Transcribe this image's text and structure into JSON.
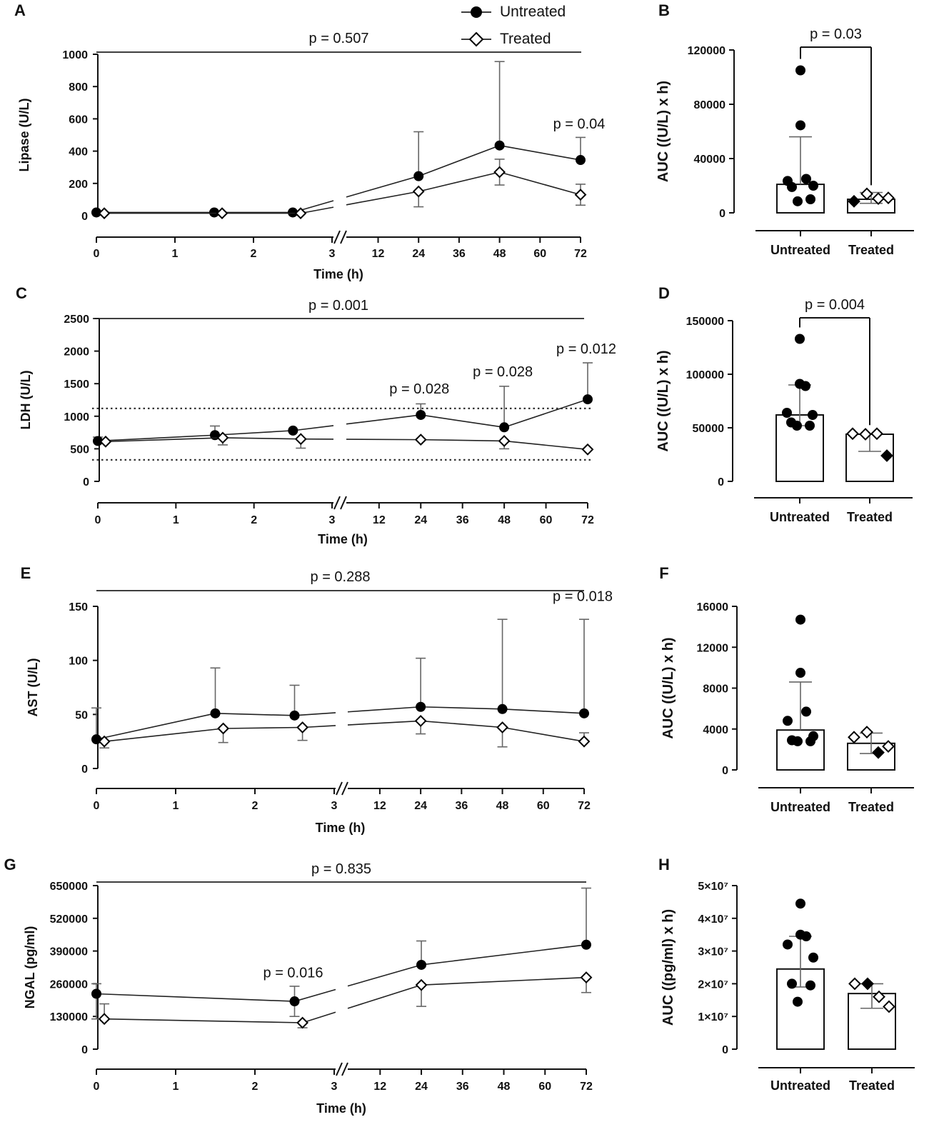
{
  "legend": {
    "untreated": "Untreated",
    "treated": "Treated"
  },
  "chart_data": [
    {
      "id": "A",
      "panel": "A",
      "type": "line",
      "title": "",
      "ylabel": "Lipase (U/L)",
      "xlabel": "Time (h)",
      "ylim": [
        0,
        1000
      ],
      "yticks": [
        "0",
        "200",
        "400",
        "600",
        "800",
        "1000"
      ],
      "xticks_early": [
        "0",
        "1",
        "2",
        "3"
      ],
      "xticks_late": [
        "12",
        "24",
        "36",
        "48",
        "60",
        "72"
      ],
      "overall_p": "p = 0.507",
      "annotations": [
        {
          "text": "p = 0.04",
          "x": 72,
          "y": 540
        }
      ],
      "reference_lines": [],
      "series": [
        {
          "name": "Untreated",
          "marker": "circle",
          "x": [
            0,
            1.5,
            2.5,
            24,
            48,
            72
          ],
          "y": [
            20,
            20,
            20,
            245,
            435,
            345
          ],
          "err_up": [
            null,
            null,
            null,
            520,
            955,
            485
          ],
          "err_down": [
            null,
            null,
            null,
            null,
            null,
            null
          ]
        },
        {
          "name": "Treated",
          "marker": "diamond",
          "x": [
            0.1,
            1.6,
            2.6,
            24,
            48,
            72
          ],
          "y": [
            15,
            15,
            15,
            150,
            270,
            130
          ],
          "err_up": [
            null,
            null,
            null,
            null,
            350,
            195
          ],
          "err_down": [
            null,
            null,
            null,
            55,
            190,
            65
          ]
        }
      ]
    },
    {
      "id": "B",
      "panel": "B",
      "type": "bar",
      "ylabel": "AUC ((U/L) x h)",
      "ylim": [
        0,
        120000
      ],
      "yticks": [
        "0",
        "40000",
        "80000",
        "120000"
      ],
      "categories": [
        "Untreated",
        "Treated"
      ],
      "values": [
        21000,
        10000
      ],
      "err_up": [
        56000,
        15000
      ],
      "err_down": [
        null,
        7000
      ],
      "points": [
        [
          105000,
          64500,
          25000,
          23500,
          20000,
          19000,
          10000,
          8500
        ],
        [
          {
            "y": 8500,
            "filled": true
          },
          {
            "y": 14000,
            "filled": false
          },
          {
            "y": 10500,
            "filled": false
          },
          {
            "y": 11000,
            "filled": false
          }
        ]
      ],
      "bracket_p": "p = 0.03"
    },
    {
      "id": "C",
      "panel": "C",
      "type": "line",
      "ylabel": "LDH (U/L)",
      "xlabel": "Time (h)",
      "ylim": [
        0,
        2500
      ],
      "yticks": [
        "0",
        "500",
        "1000",
        "1500",
        "2000",
        "2500"
      ],
      "xticks_early": [
        "0",
        "1",
        "2",
        "3"
      ],
      "xticks_late": [
        "12",
        "24",
        "36",
        "48",
        "60",
        "72"
      ],
      "overall_p": "p = 0.001",
      "annotations": [
        {
          "text": "p = 0.028",
          "x": 24,
          "y": 1350
        },
        {
          "text": "p = 0.028",
          "x": 48,
          "y": 1610
        },
        {
          "text": "p = 0.012",
          "x": 72,
          "y": 1965
        }
      ],
      "reference_lines": [
        1120,
        330
      ],
      "series": [
        {
          "name": "Untreated",
          "marker": "circle",
          "x": [
            0,
            1.5,
            2.5,
            24,
            48,
            72
          ],
          "y": [
            620,
            710,
            780,
            1020,
            830,
            1260
          ],
          "err_up": [
            680,
            850,
            null,
            1190,
            1460,
            1820
          ],
          "err_down": [
            null,
            null,
            null,
            null,
            null,
            null
          ]
        },
        {
          "name": "Treated",
          "marker": "diamond",
          "x": [
            0.1,
            1.6,
            2.6,
            24,
            48,
            72
          ],
          "y": [
            610,
            670,
            650,
            640,
            620,
            490
          ],
          "err_up": [
            null,
            null,
            null,
            null,
            null,
            null
          ],
          "err_down": [
            null,
            560,
            510,
            null,
            500,
            null
          ]
        }
      ]
    },
    {
      "id": "D",
      "panel": "D",
      "type": "bar",
      "ylabel": "AUC ((U/L) x h)",
      "ylim": [
        0,
        150000
      ],
      "yticks": [
        "0",
        "50000",
        "100000",
        "150000"
      ],
      "categories": [
        "Untreated",
        "Treated"
      ],
      "values": [
        62000,
        44000
      ],
      "err_up": [
        90000,
        null
      ],
      "err_down": [
        52000,
        28000
      ],
      "points": [
        [
          133000,
          91000,
          89000,
          64000,
          62000,
          55000,
          52000,
          52000
        ],
        [
          {
            "y": 44500,
            "filled": false
          },
          {
            "y": 44000,
            "filled": false
          },
          {
            "y": 44500,
            "filled": false
          },
          {
            "y": 24000,
            "filled": true
          }
        ]
      ],
      "bracket_p": "p = 0.004"
    },
    {
      "id": "E",
      "panel": "E",
      "type": "line",
      "ylabel": "AST (U/L)",
      "xlabel": "Time (h)",
      "ylim": [
        0,
        150
      ],
      "yticks": [
        "0",
        "50",
        "100",
        "150"
      ],
      "xticks_early": [
        "0",
        "1",
        "2",
        "3"
      ],
      "xticks_late": [
        "12",
        "24",
        "36",
        "48",
        "60",
        "72"
      ],
      "overall_p": "p = 0.288",
      "annotations": [
        {
          "text": "p = 0.018",
          "x": 72,
          "y": 155
        }
      ],
      "reference_lines": [],
      "series": [
        {
          "name": "Untreated",
          "marker": "circle",
          "x": [
            0,
            1.5,
            2.5,
            24,
            48,
            72
          ],
          "y": [
            27,
            51,
            49,
            57,
            55,
            51
          ],
          "err_up": [
            56,
            93,
            77,
            102,
            138,
            138
          ],
          "err_down": [
            null,
            null,
            null,
            null,
            null,
            null
          ]
        },
        {
          "name": "Treated",
          "marker": "diamond",
          "x": [
            0.1,
            1.6,
            2.6,
            24,
            48,
            72
          ],
          "y": [
            25,
            37,
            38,
            44,
            38,
            25
          ],
          "err_up": [
            null,
            null,
            null,
            null,
            null,
            33
          ],
          "err_down": [
            19,
            24,
            26,
            32,
            20,
            null
          ]
        }
      ]
    },
    {
      "id": "F",
      "panel": "F",
      "type": "bar",
      "ylabel": "AUC ((U/L) x h)",
      "ylim": [
        0,
        16000
      ],
      "yticks": [
        "0",
        "4000",
        "8000",
        "12000",
        "16000"
      ],
      "categories": [
        "Untreated",
        "Treated"
      ],
      "values": [
        3900,
        2600
      ],
      "err_up": [
        8600,
        3600
      ],
      "err_down": [
        null,
        1600
      ],
      "points": [
        [
          14700,
          9500,
          5700,
          4800,
          3300,
          2900,
          2800,
          2800
        ],
        [
          {
            "y": 3200,
            "filled": false
          },
          {
            "y": 3700,
            "filled": false
          },
          {
            "y": 1700,
            "filled": true
          },
          {
            "y": 2300,
            "filled": false
          }
        ]
      ],
      "bracket_p": ""
    },
    {
      "id": "G",
      "panel": "G",
      "type": "line",
      "ylabel": "NGAL (pg/ml)",
      "xlabel": "Time (h)",
      "ylim": [
        0,
        650000
      ],
      "yticks": [
        "0",
        "130000",
        "260000",
        "390000",
        "520000",
        "650000"
      ],
      "xticks_early": [
        "0",
        "1",
        "2",
        "3"
      ],
      "xticks_late": [
        "12",
        "24",
        "36",
        "48",
        "60",
        "72"
      ],
      "overall_p": "p = 0.835",
      "annotations": [
        {
          "text": "p = 0.016",
          "x": 2.5,
          "y": 285000
        }
      ],
      "reference_lines": [],
      "series": [
        {
          "name": "Untreated",
          "marker": "circle",
          "x": [
            0,
            2.5,
            24,
            72
          ],
          "y": [
            220000,
            190000,
            335000,
            415000
          ],
          "err_up": [
            260000,
            250000,
            430000,
            640000
          ],
          "err_down": [
            120000,
            130000,
            null,
            null
          ]
        },
        {
          "name": "Treated",
          "marker": "diamond",
          "x": [
            0.1,
            2.6,
            24,
            72
          ],
          "y": [
            120000,
            105000,
            255000,
            285000
          ],
          "err_up": [
            180000,
            null,
            null,
            null
          ],
          "err_down": [
            null,
            85000,
            170000,
            225000
          ]
        }
      ]
    },
    {
      "id": "H",
      "panel": "H",
      "type": "bar",
      "ylabel": "AUC ((pg/ml) x h)",
      "ylim": [
        0,
        50000000
      ],
      "yticks": [
        "0",
        "1×10⁷",
        "2×10⁷",
        "3×10⁷",
        "4×10⁷",
        "5×10⁷"
      ],
      "categories": [
        "Untreated",
        "Treated"
      ],
      "values": [
        24500000,
        17000000
      ],
      "err_up": [
        34500000,
        20000000
      ],
      "err_down": [
        19000000,
        12500000
      ],
      "points": [
        [
          44500000,
          35000000,
          34500000,
          32000000,
          28000000,
          20000000,
          19500000,
          14500000
        ],
        [
          {
            "y": 20000000,
            "filled": false
          },
          {
            "y": 20000000,
            "filled": true
          },
          {
            "y": 16000000,
            "filled": false
          },
          {
            "y": 13000000,
            "filled": false
          }
        ]
      ],
      "bracket_p": ""
    }
  ]
}
